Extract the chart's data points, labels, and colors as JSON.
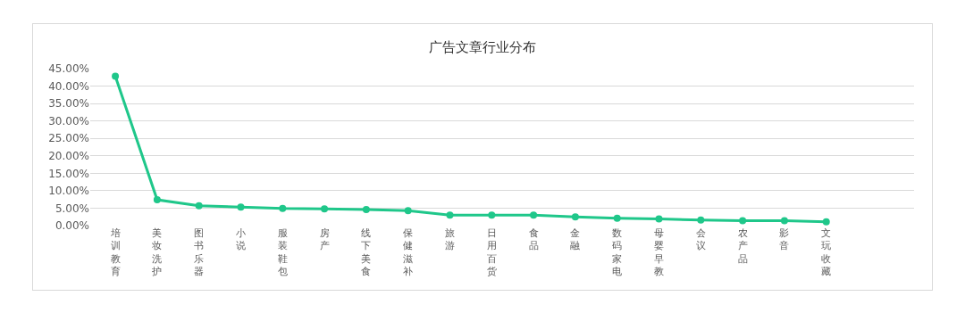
{
  "chart_data": {
    "type": "line",
    "title": "广告文章行业分布",
    "categories": [
      "培训教育",
      "美妆洗护",
      "图书乐器",
      "小说",
      "服装鞋包",
      "房产",
      "线下美食",
      "保健滋补",
      "旅游",
      "日用百货",
      "食品",
      "金融",
      "数码家电",
      "母婴早教",
      "会议",
      "农产品",
      "影音",
      "文玩收藏"
    ],
    "series": [
      {
        "color": "#1fc78a",
        "values": [
          42.8,
          7.4,
          5.7,
          5.3,
          4.9,
          4.8,
          4.6,
          4.3,
          3.0,
          3.0,
          3.0,
          2.5,
          2.1,
          1.9,
          1.6,
          1.4,
          1.4,
          1.1
        ]
      }
    ],
    "ylim": [
      0,
      45
    ],
    "yticks": [
      {
        "value": 0,
        "label": "0.00%"
      },
      {
        "value": 5,
        "label": "5.00%"
      },
      {
        "value": 10,
        "label": "10.00%"
      },
      {
        "value": 15,
        "label": "15.00%"
      },
      {
        "value": 20,
        "label": "20.00%"
      },
      {
        "value": 25,
        "label": "25.00%"
      },
      {
        "value": 30,
        "label": "30.00%"
      },
      {
        "value": 35,
        "label": "35.00%"
      },
      {
        "value": 40,
        "label": "40.00%"
      },
      {
        "value": 45,
        "label": "45.00%"
      }
    ],
    "grid": "y",
    "marker": "circle",
    "line_style": "solid"
  }
}
